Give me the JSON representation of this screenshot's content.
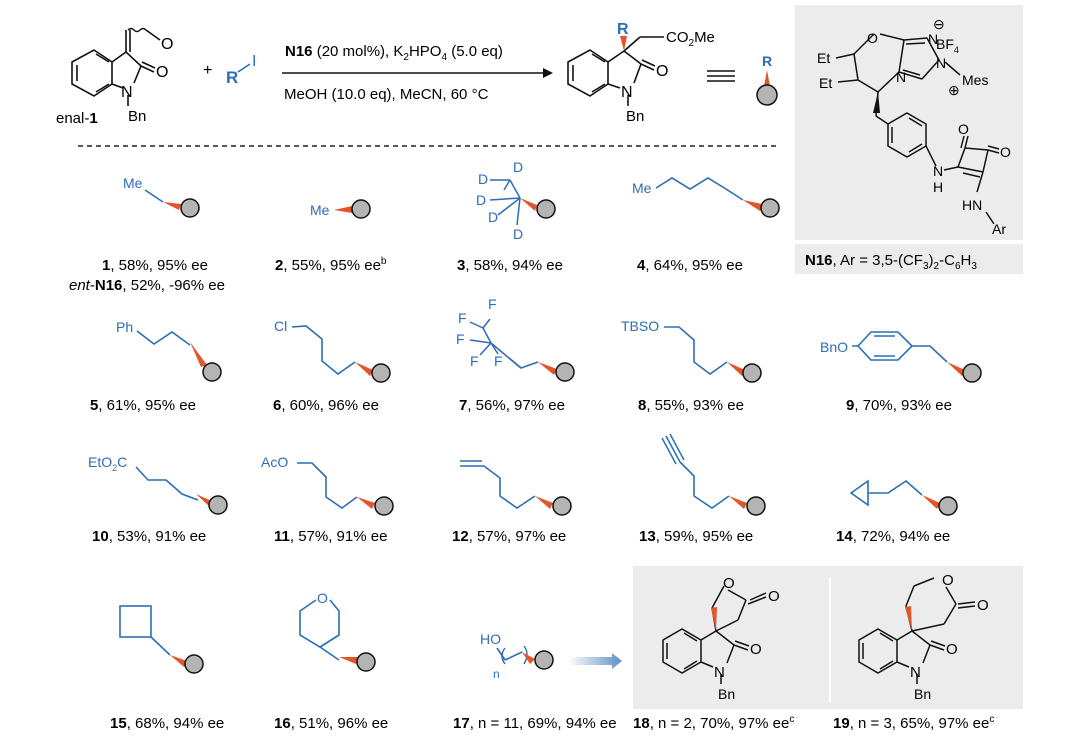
{
  "colors": {
    "blue": "#2c6eb5",
    "orange": "#e2552a",
    "ball": "#b4b4b4",
    "box": "#ececec",
    "black": "#111111"
  },
  "top": {
    "enal_aldehyde": "O",
    "enal_carbonyl": "O",
    "enal_n": "N",
    "enal_bn": "Bn",
    "enal_label_text": "enal-",
    "enal_label_num": "1",
    "plus": "+",
    "reagent_r": "R",
    "reagent_i": "I",
    "cond_cat": "N16",
    "cond_cat_rest": " (20 mol%), K",
    "cond_k_sub": "2",
    "cond_hpo": "HPO",
    "cond_hpo_sub": "4",
    "cond_eq": " (5.0 eq)",
    "cond_line2": "MeOH (10.0 eq), MeCN, 60 °C",
    "prod_r": "R",
    "prod_ester": "CO",
    "prod_ester_sub": "2",
    "prod_ester_me": "Me",
    "prod_o": "O",
    "prod_n": "N",
    "prod_bn": "Bn",
    "equiv": "≡",
    "ball_r": "R"
  },
  "catalyst": {
    "o_ring": "O",
    "et1": "Et",
    "et2": "Et",
    "n1": "N",
    "n2": "N",
    "n3": "N",
    "minus": "⊖",
    "plus": "⊕",
    "bf4": "BF",
    "bf4_sub": "4",
    "mes": "Mes",
    "sq_o1": "O",
    "sq_o2": "O",
    "nh1": "N",
    "nh1_h": "H",
    "hn_ar": "HN",
    "ar": "Ar",
    "caption_bold": "N16",
    "caption_rest": ", Ar = 3,5-(CF",
    "caption_sub1": "3",
    "caption_mid": ")",
    "caption_sub2": "2",
    "caption_end": "-C",
    "caption_sub3": "6",
    "caption_h": "H",
    "caption_sub4": "3"
  },
  "groups": {
    "me": "Me",
    "d": "D",
    "ph": "Ph",
    "cl": "Cl",
    "f": "F",
    "tbso": "TBSO",
    "bno": "BnO",
    "eto2c_a": "EtO",
    "eto2c_sub": "2",
    "eto2c_c": "C",
    "aco": "AcO",
    "o": "O",
    "ho": "HO",
    "n": "n"
  },
  "compounds": [
    {
      "num": "1",
      "text": ", 58%, 95% ee",
      "sup": ""
    },
    {
      "num": "2",
      "text": ", 55%, 95% ee",
      "sup": "b"
    },
    {
      "num": "3",
      "text": ", 58%, 94% ee",
      "sup": ""
    },
    {
      "num": "4",
      "text": ", 64%, 95% ee",
      "sup": ""
    },
    {
      "num": "5",
      "text": ", 61%, 95% ee",
      "sup": ""
    },
    {
      "num": "6",
      "text": ", 60%, 96% ee",
      "sup": ""
    },
    {
      "num": "7",
      "text": ", 56%, 97% ee",
      "sup": ""
    },
    {
      "num": "8",
      "text": ", 55%, 93% ee",
      "sup": ""
    },
    {
      "num": "9",
      "text": ", 70%, 93% ee",
      "sup": ""
    },
    {
      "num": "10",
      "text": ", 53%, 91% ee",
      "sup": ""
    },
    {
      "num": "11",
      "text": ", 57%, 91% ee",
      "sup": ""
    },
    {
      "num": "12",
      "text": ", 57%, 97% ee",
      "sup": ""
    },
    {
      "num": "13",
      "text": ", 59%, 95% ee",
      "sup": ""
    },
    {
      "num": "14",
      "text": ", 72%, 94% ee",
      "sup": ""
    },
    {
      "num": "15",
      "text": ", 68%, 94% ee",
      "sup": ""
    },
    {
      "num": "16",
      "text": ", 51%, 96% ee",
      "sup": ""
    },
    {
      "num": "17",
      "text": ", n = 11, 69%, 94% ee",
      "sup": ""
    },
    {
      "num": "18",
      "text": ", n = 2, 70%, 97% ee",
      "sup": "c"
    },
    {
      "num": "19",
      "text": ", n = 3, 65%, 97% ee",
      "sup": "c"
    }
  ],
  "ent_line": {
    "italic": "ent",
    "dash": "-",
    "bold": "N16",
    "rest": ", 52%, -96% ee"
  },
  "spiro": {
    "o_ring": "O",
    "o_carbonyl": "O",
    "o_amide": "O",
    "n": "N",
    "bn": "Bn"
  }
}
